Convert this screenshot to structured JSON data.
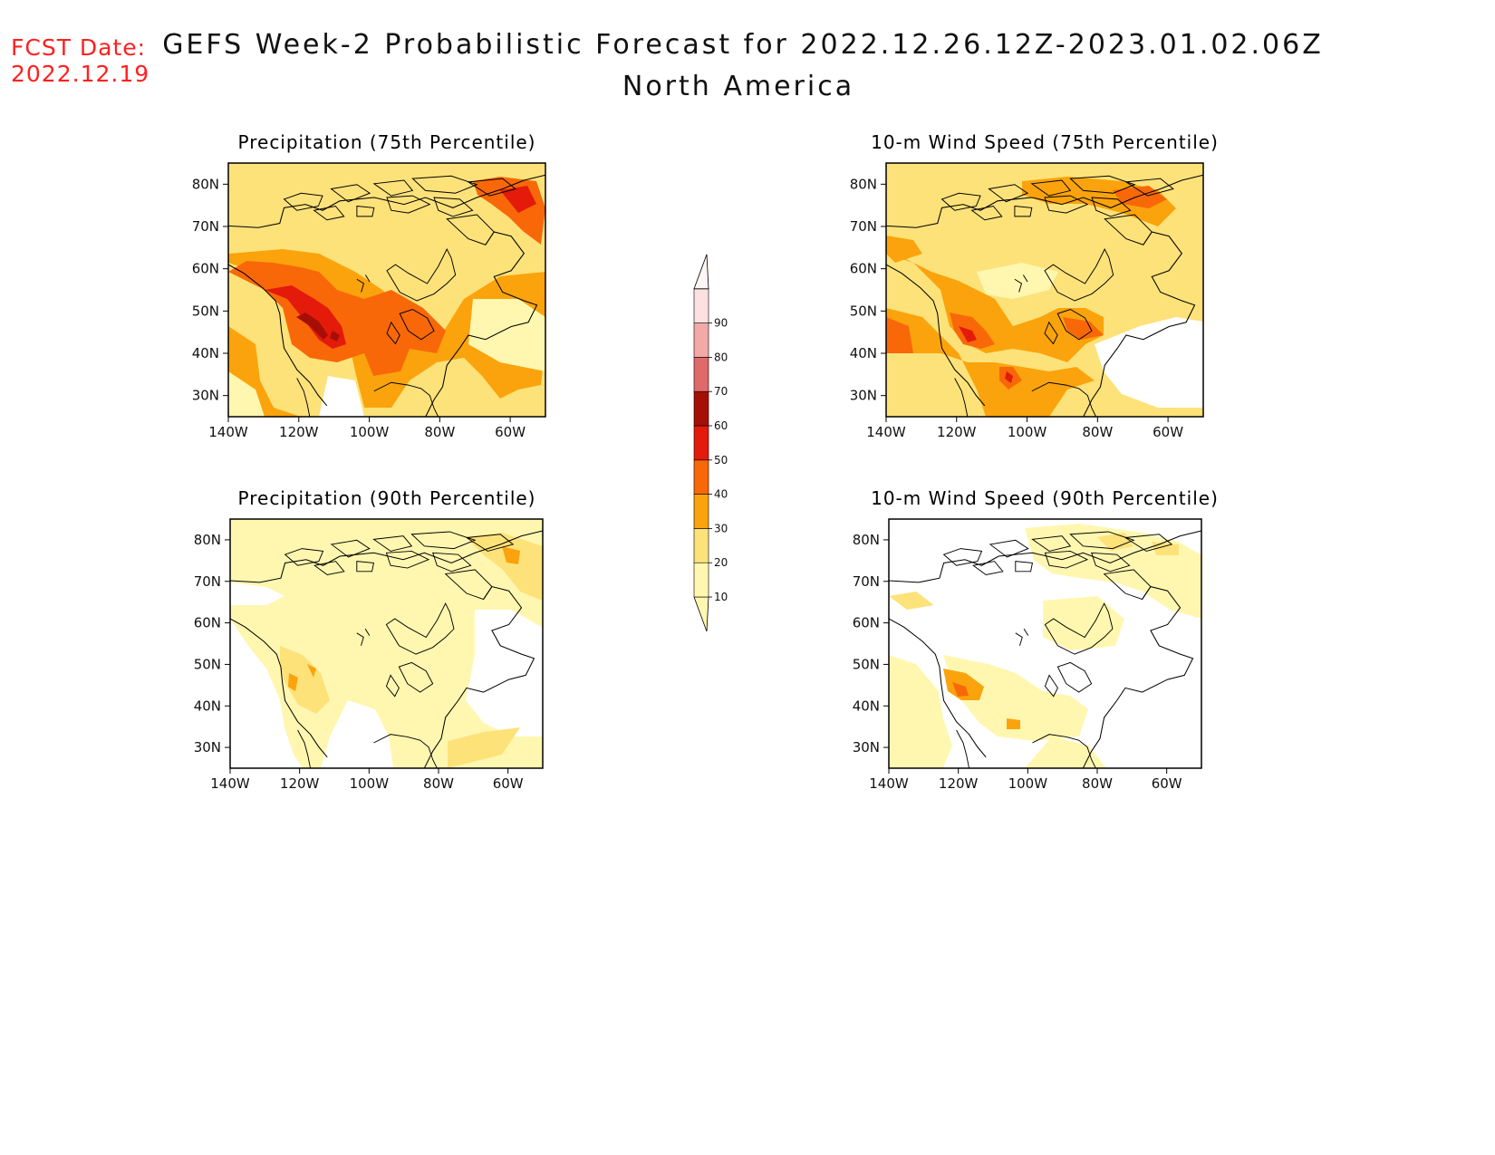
{
  "header": {
    "fcst_label": "FCST Date:",
    "fcst_date": "2022.12.19",
    "title": "GEFS Week-2 Probabilistic Forecast for 2022.12.26.12Z-2023.01.02.06Z",
    "subtitle": "North America"
  },
  "panels": [
    {
      "id": "precip75",
      "title": "Precipitation (75th Percentile)"
    },
    {
      "id": "wind75",
      "title": "10-m Wind Speed (75th Percentile)"
    },
    {
      "id": "precip90",
      "title": "Precipitation (90th Percentile)"
    },
    {
      "id": "wind90",
      "title": "10-m Wind Speed (90th Percentile)"
    }
  ],
  "axes": {
    "lat_ticks": [
      "80N",
      "70N",
      "60N",
      "50N",
      "40N",
      "30N"
    ],
    "lon_ticks": [
      "140W",
      "120W",
      "100W",
      "80W",
      "60W"
    ]
  },
  "colorbar": {
    "levels": [
      "90",
      "80",
      "70",
      "60",
      "50",
      "40",
      "30",
      "20",
      "10"
    ],
    "colors": {
      "10-20": "#fff7b0",
      "20-30": "#fde27a",
      "30-40": "#fba30c",
      "40-50": "#f86809",
      "50-60": "#e41a0b",
      "60-70": "#a50f06",
      "70-80": "#e06a6a",
      "80-90": "#f4a9a9",
      "90-100": "#fde0e0"
    }
  }
}
